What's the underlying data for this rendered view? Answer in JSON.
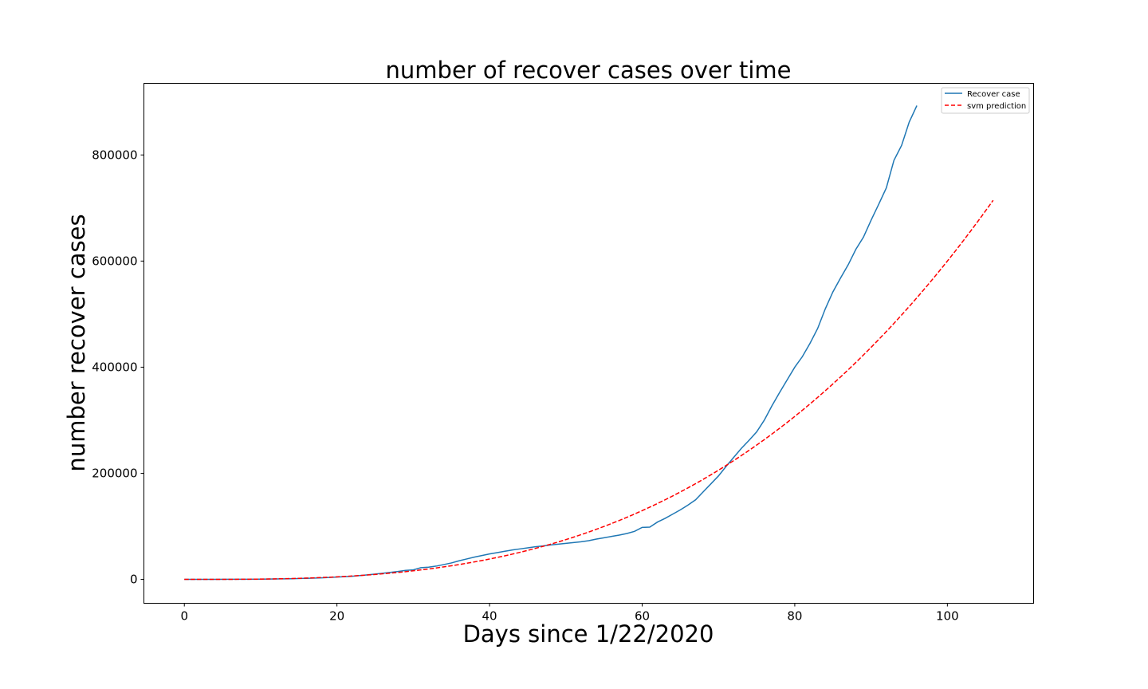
{
  "chart_data": {
    "type": "line",
    "title": "number of recover cases over time",
    "xlabel": "Days since 1/22/2020",
    "ylabel": "number recover  cases",
    "xlim": [
      -5.3,
      111.3
    ],
    "ylim": [
      -45000,
      935000
    ],
    "xticks": [
      0,
      20,
      40,
      60,
      80,
      100
    ],
    "yticks": [
      0,
      200000,
      400000,
      600000,
      800000
    ],
    "grid": false,
    "legend_position": "top-right",
    "series": [
      {
        "name": "Recover case",
        "color": "#1f77b4",
        "style": "solid",
        "points": [
          [
            0,
            30
          ],
          [
            2,
            60
          ],
          [
            4,
            100
          ],
          [
            6,
            200
          ],
          [
            8,
            300
          ],
          [
            10,
            500
          ],
          [
            12,
            800
          ],
          [
            14,
            1200
          ],
          [
            16,
            2000
          ],
          [
            18,
            3000
          ],
          [
            20,
            4500
          ],
          [
            22,
            6000
          ],
          [
            24,
            8500
          ],
          [
            26,
            11500
          ],
          [
            28,
            15000
          ],
          [
            29,
            17000
          ],
          [
            30,
            18000
          ],
          [
            31,
            22000
          ],
          [
            32,
            23000
          ],
          [
            33,
            25000
          ],
          [
            34,
            28000
          ],
          [
            35,
            31000
          ],
          [
            36,
            35000
          ],
          [
            37,
            38500
          ],
          [
            38,
            42000
          ],
          [
            39,
            45000
          ],
          [
            40,
            48000
          ],
          [
            41,
            50500
          ],
          [
            42,
            53000
          ],
          [
            43,
            55500
          ],
          [
            44,
            57500
          ],
          [
            45,
            59500
          ],
          [
            46,
            61500
          ],
          [
            47,
            63000
          ],
          [
            48,
            65000
          ],
          [
            49,
            66500
          ],
          [
            50,
            68000
          ],
          [
            51,
            69500
          ],
          [
            52,
            71000
          ],
          [
            53,
            73000
          ],
          [
            54,
            76000
          ],
          [
            55,
            78500
          ],
          [
            56,
            81000
          ],
          [
            57,
            83500
          ],
          [
            58,
            86500
          ],
          [
            59,
            90500
          ],
          [
            60,
            98000
          ],
          [
            61,
            98500
          ],
          [
            62,
            108000
          ],
          [
            63,
            115000
          ],
          [
            64,
            123000
          ],
          [
            65,
            131000
          ],
          [
            66,
            140000
          ],
          [
            67,
            150000
          ],
          [
            68,
            165000
          ],
          [
            69,
            180000
          ],
          [
            70,
            195000
          ],
          [
            71,
            213000
          ],
          [
            72,
            230000
          ],
          [
            73,
            247000
          ],
          [
            74,
            262000
          ],
          [
            75,
            278000
          ],
          [
            76,
            300000
          ],
          [
            77,
            327000
          ],
          [
            78,
            352000
          ],
          [
            79,
            376000
          ],
          [
            80,
            400000
          ],
          [
            81,
            420000
          ],
          [
            82,
            445000
          ],
          [
            83,
            473000
          ],
          [
            84,
            510000
          ],
          [
            85,
            542000
          ],
          [
            86,
            568000
          ],
          [
            87,
            593000
          ],
          [
            88,
            622000
          ],
          [
            89,
            645000
          ],
          [
            90,
            677000
          ],
          [
            91,
            707000
          ],
          [
            92,
            738000
          ],
          [
            93,
            790000
          ],
          [
            94,
            818000
          ],
          [
            95,
            862000
          ],
          [
            96,
            893000
          ]
        ]
      },
      {
        "name": "svm prediction",
        "color": "#ff0000",
        "style": "dashed",
        "model": {
          "a": 0.6,
          "b": 3,
          "x_min": 0,
          "x_max": 106
        }
      }
    ]
  }
}
